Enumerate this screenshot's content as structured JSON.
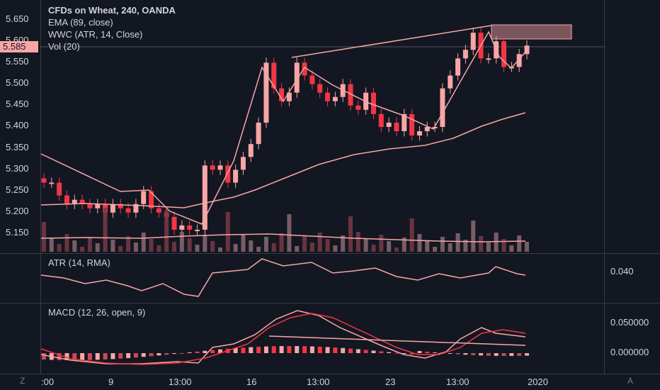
{
  "chart": {
    "title": "CFDs on Wheat, 240, OANDA",
    "indicators": [
      "EMA (89, close)",
      "WWC (ATR, 14, Close)",
      "Vol (20)"
    ],
    "last_price": "5.585",
    "price_ticks": [
      "5.650",
      "5.600",
      "5.550",
      "5.500",
      "5.450",
      "5.400",
      "5.350",
      "5.300",
      "5.250",
      "5.200",
      "5.150"
    ]
  },
  "atr_pane": {
    "label": "ATR (14, RMA)",
    "tick": "0.040"
  },
  "macd_pane": {
    "label": "MACD (12, 26, open, 9)",
    "ticks": [
      "0.050000",
      "0.000000"
    ]
  },
  "time_axis": {
    "labels": [
      ":00",
      "9",
      "13:00",
      "16",
      "13:00",
      "23",
      "13:00",
      "2020"
    ]
  },
  "corners": {
    "left": "Z",
    "right": "A"
  },
  "colors": {
    "background": "#131722",
    "up": "#f7a6a6",
    "down": "#f23645",
    "ema": "#f7a6a6",
    "macd": "#f7a6a6",
    "signal": "#f23645",
    "grid": "#363a45"
  }
}
